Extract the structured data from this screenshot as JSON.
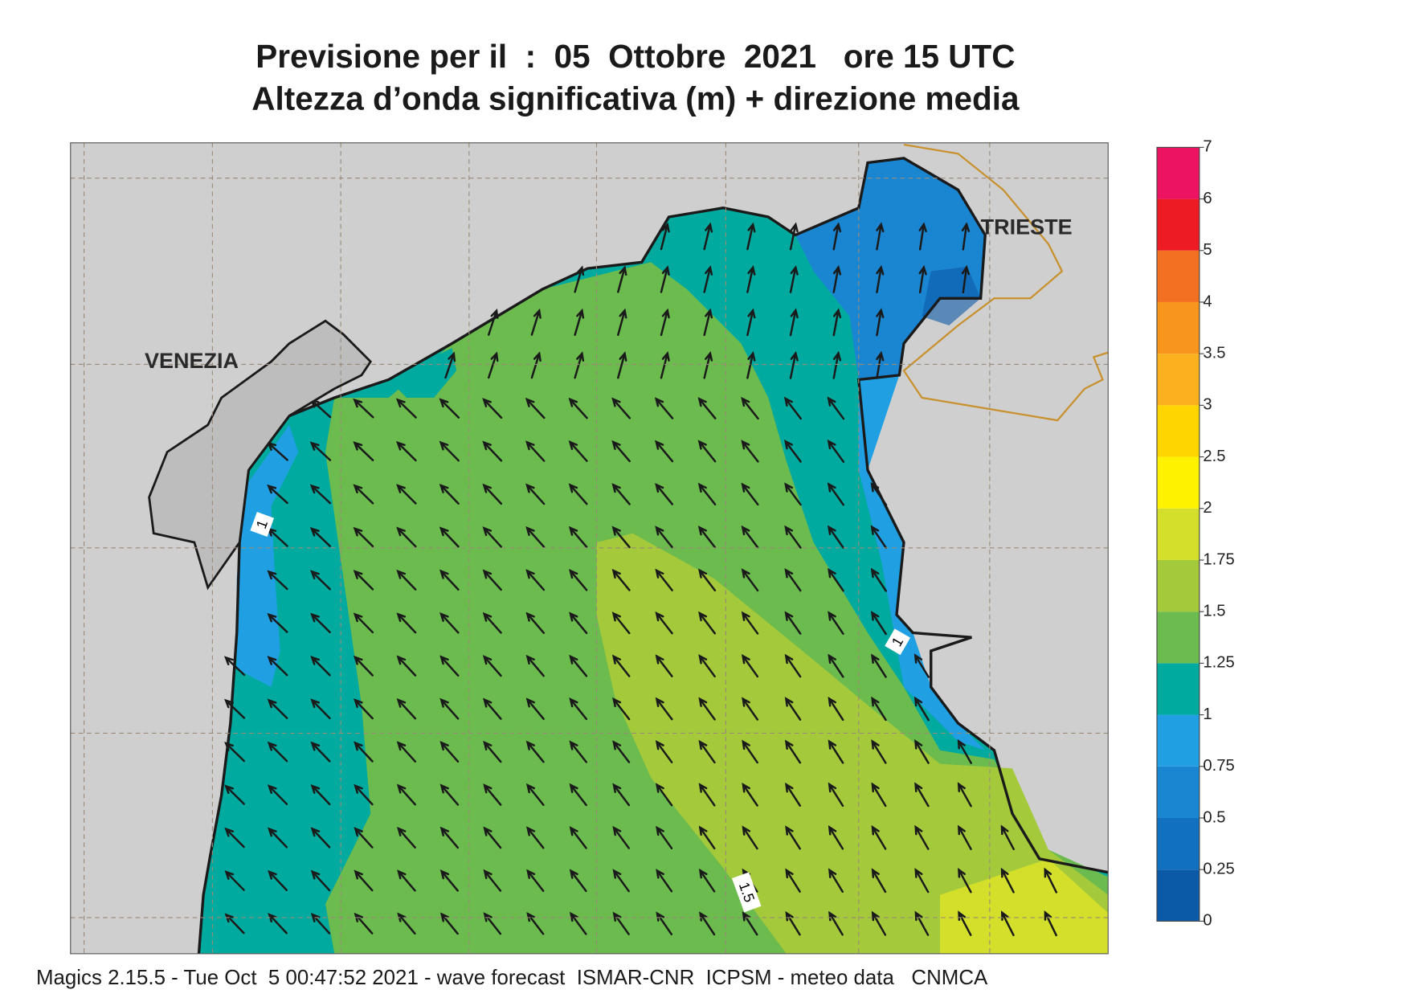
{
  "header": {
    "title": "Previsione per il  :  05  Ottobre  2021   ore 15 UTC",
    "subtitle": "Altezza d’onda significativa (m) + direzione media"
  },
  "map": {
    "cities": [
      "VENEZIA",
      "TRIESTE"
    ],
    "contour_labels": [
      1,
      1,
      1.5
    ]
  },
  "legend": {
    "levels": [
      0,
      0.25,
      0.5,
      0.75,
      1,
      1.25,
      1.5,
      1.75,
      2,
      2.5,
      3,
      3.5,
      4,
      5,
      6,
      7
    ],
    "colors": [
      "#0b5aa8",
      "#1270c0",
      "#1a86d2",
      "#20a0e2",
      "#00aa9f",
      "#6cbb4f",
      "#a4c93a",
      "#d3df2a",
      "#fff200",
      "#ffd500",
      "#fbb01e",
      "#f7951d",
      "#f37022",
      "#ed1c24",
      "#ec1462"
    ]
  },
  "footer": {
    "text": "Magics 2.15.5 - Tue Oct  5 00:47:52 2021 - wave forecast  ISMAR-CNR  ICPSM - meteo data   CNMCA"
  }
}
